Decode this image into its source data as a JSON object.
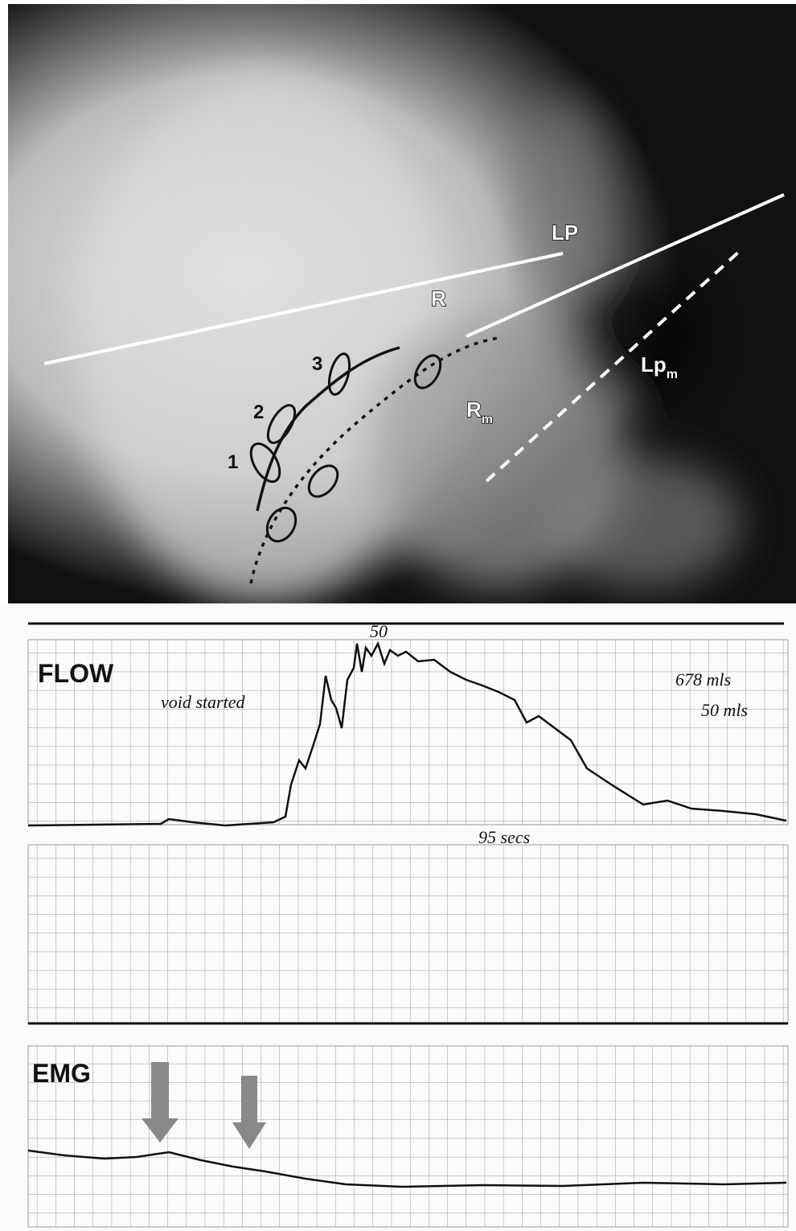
{
  "xray": {
    "labels": {
      "lp": "LP",
      "r": "R",
      "lpm": "Lp",
      "lpm_sub": "m",
      "rm": "R",
      "rm_sub": "m",
      "n1": "1",
      "n2": "2",
      "n3": "3"
    }
  },
  "strip": {
    "flow_label": "FLOW",
    "note_void": "void started",
    "note_peak": "50",
    "volume": "678 mls",
    "scale": "50 mls",
    "duration": "95 secs",
    "emg_label": "EMG"
  }
}
